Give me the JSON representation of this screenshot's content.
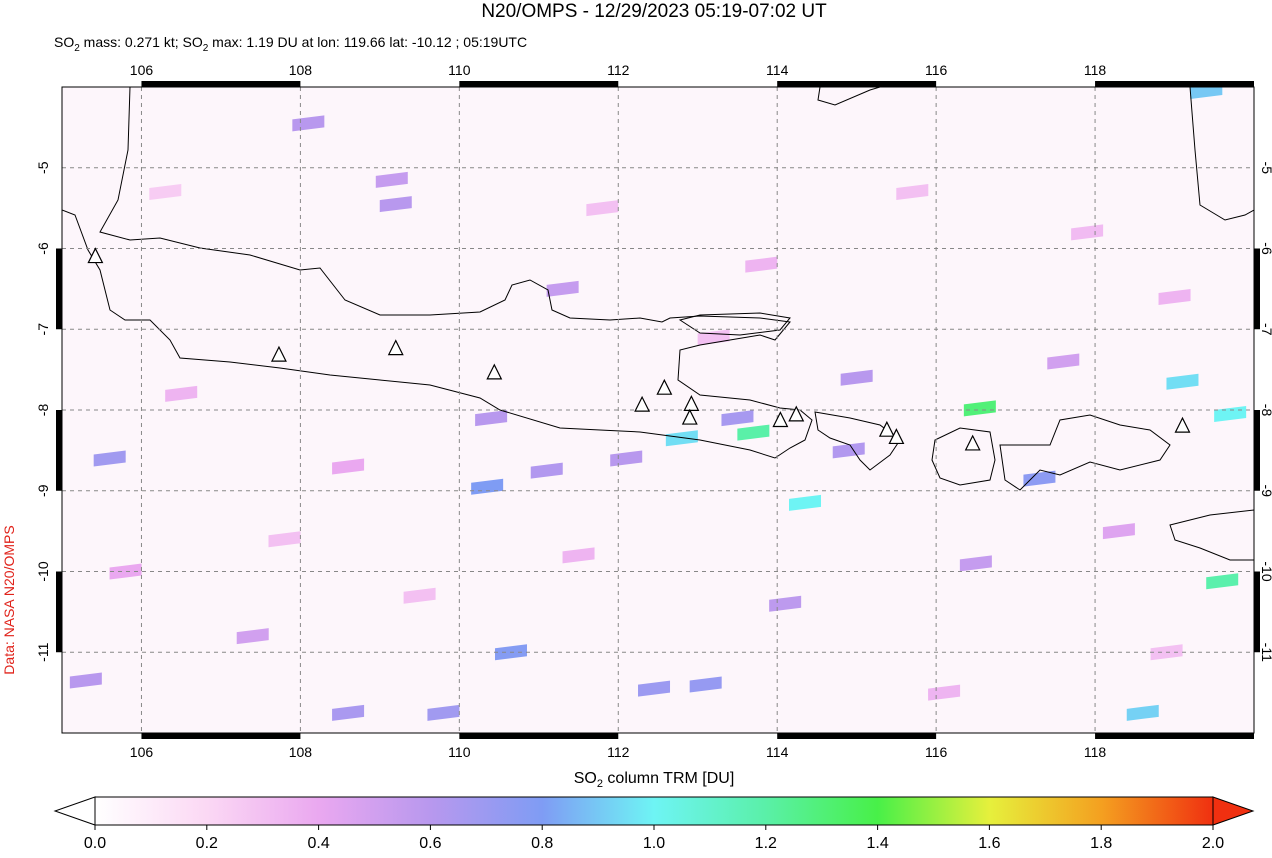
{
  "chart_data": {
    "type": "map",
    "title": "N20/OMPS - 12/29/2023 05:19-07:02 UT",
    "subtitle_parts": [
      "SO",
      "2",
      " mass: 0.271 kt; SO",
      "2",
      " max: 1.19 DU at lon: 119.66 lat: -10.12 ; 05:19UTC"
    ],
    "colorbar_label_parts": [
      "SO",
      "2",
      " column TRM [DU]"
    ],
    "source": "Data: NASA N20/OMPS",
    "xlim": [
      105,
      120
    ],
    "ylim": [
      -4,
      -12
    ],
    "xticks": [
      106,
      108,
      110,
      112,
      114,
      116,
      118
    ],
    "yticks": [
      -5,
      -6,
      -7,
      -8,
      -9,
      -10,
      -11
    ],
    "grid": true,
    "clim": [
      0,
      2
    ],
    "colorbar_ticks": [
      {
        "value": 0,
        "label": "0.0"
      },
      {
        "value": 0.2,
        "label": "0.2"
      },
      {
        "value": 0.4,
        "label": "0.4"
      },
      {
        "value": 0.6,
        "label": "0.6"
      },
      {
        "value": 0.8,
        "label": "0.8"
      },
      {
        "value": 1,
        "label": "1.0"
      },
      {
        "value": 1.2,
        "label": "1.2"
      },
      {
        "value": 1.4,
        "label": "1.4"
      },
      {
        "value": 1.6,
        "label": "1.6"
      },
      {
        "value": 1.8,
        "label": "1.8"
      },
      {
        "value": 2,
        "label": "2.0"
      }
    ],
    "colormap": [
      "#ffffff",
      "#fbd8f4",
      "#eaa8f0",
      "#b898ee",
      "#7f9cf4",
      "#6ef4f4",
      "#5af0a8",
      "#48f048",
      "#e6f03c",
      "#f4a020",
      "#f03010"
    ],
    "volcanoes": [
      {
        "lon": 105.42,
        "lat": -6.1
      },
      {
        "lon": 107.73,
        "lat": -7.32
      },
      {
        "lon": 109.2,
        "lat": -7.24
      },
      {
        "lon": 110.44,
        "lat": -7.54
      },
      {
        "lon": 112.3,
        "lat": -7.94
      },
      {
        "lon": 112.58,
        "lat": -7.73
      },
      {
        "lon": 112.92,
        "lat": -7.93
      },
      {
        "lon": 112.9,
        "lat": -8.1
      },
      {
        "lon": 114.04,
        "lat": -8.13
      },
      {
        "lon": 114.24,
        "lat": -8.06
      },
      {
        "lon": 115.38,
        "lat": -8.25
      },
      {
        "lon": 115.5,
        "lat": -8.34
      },
      {
        "lon": 116.46,
        "lat": -8.42
      },
      {
        "lon": 119.1,
        "lat": -8.2
      }
    ],
    "pixels": [
      {
        "lon": 110.35,
        "lat": -8.95,
        "value": 0.8
      },
      {
        "lon": 110.65,
        "lat": -11.0,
        "value": 0.78
      },
      {
        "lon": 112.8,
        "lat": -8.35,
        "value": 0.95
      },
      {
        "lon": 113.7,
        "lat": -8.28,
        "value": 1.2
      },
      {
        "lon": 114.35,
        "lat": -9.15,
        "value": 1.0
      },
      {
        "lon": 116.55,
        "lat": -7.98,
        "value": 1.3
      },
      {
        "lon": 119.6,
        "lat": -10.12,
        "value": 1.19
      },
      {
        "lon": 119.7,
        "lat": -8.05,
        "value": 1.0
      },
      {
        "lon": 119.1,
        "lat": -7.65,
        "value": 0.95
      },
      {
        "lon": 118.6,
        "lat": -11.75,
        "value": 0.92
      },
      {
        "lon": 119.4,
        "lat": -4.05,
        "value": 0.9
      },
      {
        "lon": 117.3,
        "lat": -8.85,
        "value": 0.75
      },
      {
        "lon": 112.45,
        "lat": -11.45,
        "value": 0.7
      },
      {
        "lon": 113.1,
        "lat": -11.4,
        "value": 0.72
      },
      {
        "lon": 112.1,
        "lat": -8.6,
        "value": 0.6
      },
      {
        "lon": 111.1,
        "lat": -8.75,
        "value": 0.62
      },
      {
        "lon": 108.1,
        "lat": -4.45,
        "value": 0.6
      },
      {
        "lon": 109.2,
        "lat": -5.45,
        "value": 0.6
      },
      {
        "lon": 109.15,
        "lat": -5.15,
        "value": 0.55
      },
      {
        "lon": 108.6,
        "lat": -11.75,
        "value": 0.65
      },
      {
        "lon": 109.8,
        "lat": -11.75,
        "value": 0.68
      },
      {
        "lon": 110.4,
        "lat": -8.1,
        "value": 0.6
      },
      {
        "lon": 113.5,
        "lat": -8.1,
        "value": 0.66
      },
      {
        "lon": 114.9,
        "lat": -8.5,
        "value": 0.62
      },
      {
        "lon": 115.0,
        "lat": -7.6,
        "value": 0.6
      },
      {
        "lon": 105.6,
        "lat": -8.6,
        "value": 0.68
      },
      {
        "lon": 105.3,
        "lat": -11.35,
        "value": 0.6
      },
      {
        "lon": 107.4,
        "lat": -10.8,
        "value": 0.5
      },
      {
        "lon": 111.3,
        "lat": -6.5,
        "value": 0.55
      },
      {
        "lon": 114.1,
        "lat": -10.4,
        "value": 0.58
      },
      {
        "lon": 116.5,
        "lat": -9.9,
        "value": 0.55
      },
      {
        "lon": 117.6,
        "lat": -7.4,
        "value": 0.5
      },
      {
        "lon": 118.3,
        "lat": -9.5,
        "value": 0.45
      },
      {
        "lon": 106.5,
        "lat": -7.8,
        "value": 0.35
      },
      {
        "lon": 107.8,
        "lat": -9.6,
        "value": 0.3
      },
      {
        "lon": 109.5,
        "lat": -10.3,
        "value": 0.3
      },
      {
        "lon": 111.8,
        "lat": -5.5,
        "value": 0.3
      },
      {
        "lon": 113.8,
        "lat": -6.2,
        "value": 0.35
      },
      {
        "lon": 115.7,
        "lat": -5.3,
        "value": 0.3
      },
      {
        "lon": 117.9,
        "lat": -5.8,
        "value": 0.32
      },
      {
        "lon": 119.0,
        "lat": -6.6,
        "value": 0.35
      },
      {
        "lon": 106.3,
        "lat": -5.3,
        "value": 0.25
      },
      {
        "lon": 108.6,
        "lat": -8.7,
        "value": 0.4
      },
      {
        "lon": 111.5,
        "lat": -9.8,
        "value": 0.35
      },
      {
        "lon": 113.2,
        "lat": -7.1,
        "value": 0.3
      },
      {
        "lon": 116.1,
        "lat": -11.5,
        "value": 0.35
      },
      {
        "lon": 118.9,
        "lat": -11.0,
        "value": 0.3
      },
      {
        "lon": 105.8,
        "lat": -10.0,
        "value": 0.4
      }
    ]
  }
}
